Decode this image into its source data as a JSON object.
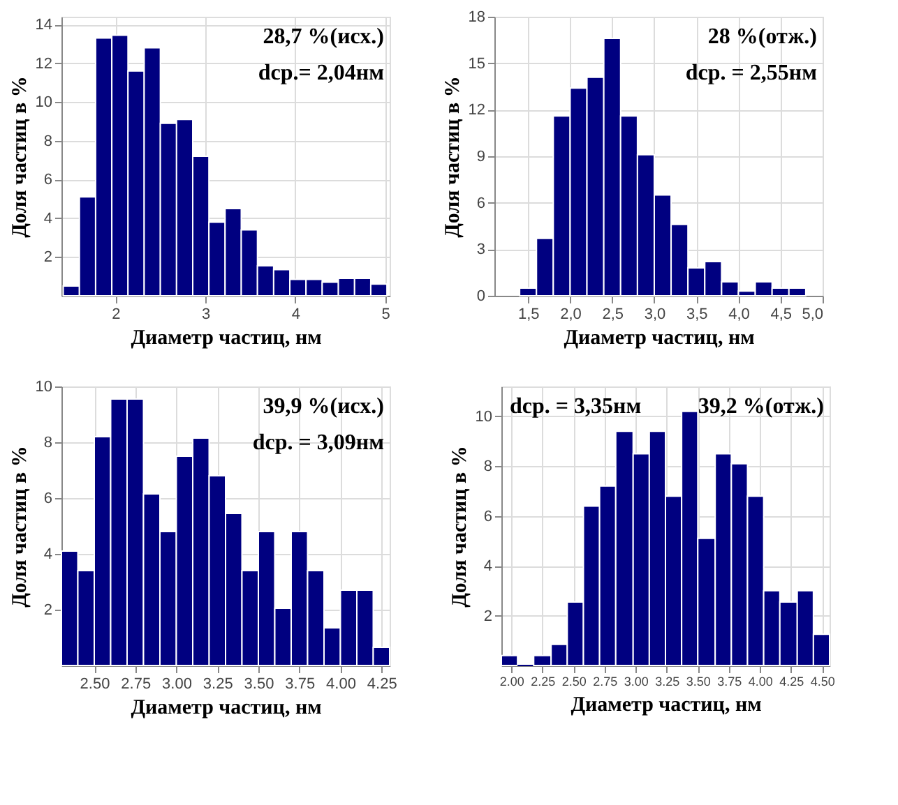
{
  "chart_data": [
    {
      "type": "histogram",
      "xlabel": "Диаметр частиц, нм",
      "ylabel": "Доля частиц в %",
      "color": "#000080",
      "bins": [
        1.42,
        1.6,
        1.78,
        1.96,
        2.14,
        2.32,
        2.5,
        2.68,
        2.86,
        3.04,
        3.22,
        3.4,
        3.58,
        3.76,
        3.94,
        4.12,
        4.3,
        4.48,
        4.66,
        4.84,
        5.02
      ],
      "values": [
        0.5,
        5.1,
        13.3,
        13.45,
        11.6,
        12.8,
        8.9,
        9.1,
        7.2,
        3.8,
        4.5,
        3.4,
        1.55,
        1.35,
        0.85,
        0.85,
        0.7,
        0.9,
        0.9,
        0.6
      ],
      "xlim": [
        1.4,
        5.05
      ],
      "xticks": [
        2,
        3,
        4,
        5
      ],
      "ylim": [
        0,
        14.4
      ],
      "yticks": [
        2,
        4,
        6,
        8,
        10,
        12,
        14
      ],
      "grid": true,
      "annotations": [
        "28,7 %(исх.)",
        "dср.= 2,04нм"
      ]
    },
    {
      "type": "histogram",
      "xlabel": "Диаметр частиц, нм",
      "ylabel": "Доля частиц в %",
      "color": "#000080",
      "bins": [
        1.4,
        1.6,
        1.8,
        2.0,
        2.2,
        2.4,
        2.6,
        2.8,
        3.0,
        3.2,
        3.4,
        3.6,
        3.8,
        4.0,
        4.2,
        4.4,
        4.6,
        4.8
      ],
      "values": [
        0.5,
        3.7,
        11.6,
        13.4,
        14.1,
        16.6,
        11.6,
        9.1,
        6.5,
        4.6,
        1.8,
        2.2,
        0.9,
        0.3,
        0.9,
        0.5,
        0.5
      ],
      "xlim": [
        1.1,
        5.0
      ],
      "xticks": [
        {
          "value": 1.5,
          "label": "1,5"
        },
        {
          "value": 2.0,
          "label": "2,0"
        },
        {
          "value": 2.5,
          "label": "2,5"
        },
        {
          "value": 3.0,
          "label": "3,0"
        },
        {
          "value": 3.5,
          "label": "3,5"
        },
        {
          "value": 4.0,
          "label": "4,0"
        },
        {
          "value": 4.5,
          "label": "4,5"
        },
        {
          "value": 5.0,
          "label": "5,0"
        }
      ],
      "ylim": [
        0,
        18
      ],
      "yticks": [
        0,
        3,
        6,
        9,
        12,
        15,
        18
      ],
      "grid": true,
      "annotations": [
        "28 %(отж.)",
        "dср. = 2,55нм"
      ]
    },
    {
      "type": "histogram",
      "xlabel": "Диаметр частиц, нм",
      "ylabel": "Доля частиц в %",
      "color": "#000080",
      "bins": [
        2.3,
        2.4,
        2.5,
        2.6,
        2.7,
        2.8,
        2.9,
        3.0,
        3.1,
        3.2,
        3.3,
        3.4,
        3.5,
        3.6,
        3.7,
        3.8,
        3.9,
        4.0,
        4.1,
        4.2,
        4.3
      ],
      "values": [
        4.1,
        3.4,
        8.2,
        9.55,
        9.55,
        6.15,
        4.8,
        7.5,
        8.15,
        6.8,
        5.45,
        3.4,
        4.8,
        2.05,
        4.8,
        3.4,
        1.35,
        2.7,
        2.7,
        0.65
      ],
      "xlim": [
        2.3,
        4.3
      ],
      "xticks": [
        {
          "value": 2.5,
          "label": "2.50"
        },
        {
          "value": 2.75,
          "label": "2.75"
        },
        {
          "value": 3.0,
          "label": "3.00"
        },
        {
          "value": 3.25,
          "label": "3.25"
        },
        {
          "value": 3.5,
          "label": "3.50"
        },
        {
          "value": 3.75,
          "label": "3.75"
        },
        {
          "value": 4.0,
          "label": "4.00"
        },
        {
          "value": 4.25,
          "label": "4.25"
        }
      ],
      "ylim": [
        0,
        10
      ],
      "yticks": [
        2,
        4,
        6,
        8,
        10
      ],
      "grid": true,
      "annotations": [
        "39,9 %(исх.)",
        "dср. = 3,09нм"
      ]
    },
    {
      "type": "histogram",
      "xlabel": "Диаметр частиц, нм",
      "ylabel": "Доля частиц в %",
      "color": "#000080",
      "bins": [
        1.92,
        2.05,
        2.18,
        2.32,
        2.45,
        2.58,
        2.71,
        2.84,
        2.98,
        3.11,
        3.24,
        3.37,
        3.5,
        3.64,
        3.77,
        3.9,
        4.03,
        4.16,
        4.3,
        4.43,
        4.56
      ],
      "values": [
        0.4,
        0,
        0.4,
        0.85,
        2.55,
        6.4,
        7.2,
        9.4,
        8.5,
        9.4,
        6.8,
        10.2,
        5.1,
        8.5,
        8.1,
        6.8,
        3.0,
        2.55,
        3.0,
        1.25
      ],
      "xlim": [
        1.92,
        4.56
      ],
      "xticks": [
        {
          "value": 2.0,
          "label": "2.00"
        },
        {
          "value": 2.25,
          "label": "2.25"
        },
        {
          "value": 2.5,
          "label": "2.50"
        },
        {
          "value": 2.75,
          "label": "2.75"
        },
        {
          "value": 3.0,
          "label": "3.00"
        },
        {
          "value": 3.25,
          "label": "3.25"
        },
        {
          "value": 3.5,
          "label": "3.50"
        },
        {
          "value": 3.75,
          "label": "3.75"
        },
        {
          "value": 4.0,
          "label": "4.00"
        },
        {
          "value": 4.25,
          "label": "4.25"
        },
        {
          "value": 4.5,
          "label": "4.50"
        }
      ],
      "ylim": [
        0,
        11.2
      ],
      "yticks": [
        2,
        4,
        6,
        8,
        10
      ],
      "grid": true,
      "annotations": [
        "39,2 %(отж.)",
        "dср. = 3,35нм"
      ]
    }
  ]
}
